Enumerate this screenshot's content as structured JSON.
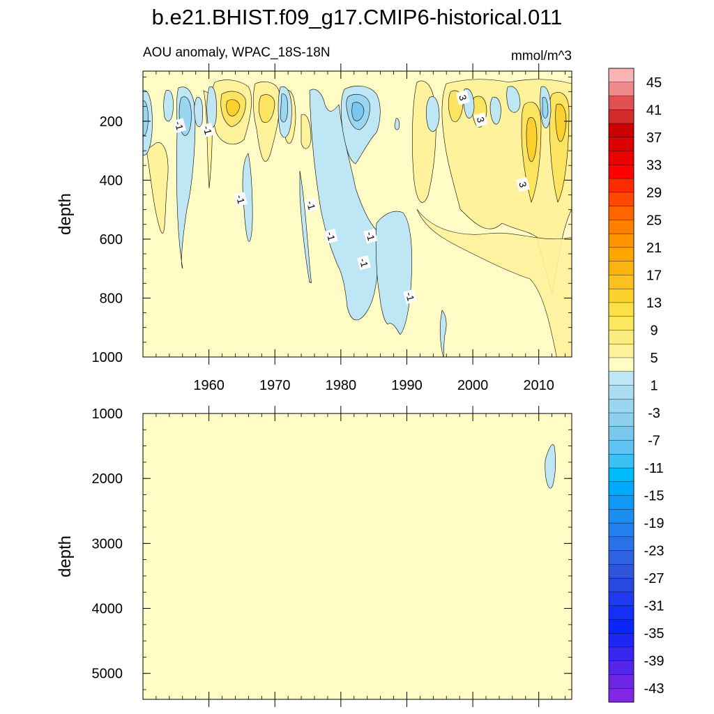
{
  "title": "b.e21.BHIST.f09_g17.CMIP6-historical.011",
  "colors": {
    "background": "#ffffff",
    "plot_fill": "#fffcc5",
    "neg_1": "#bee6f5",
    "neg_2": "#9bd6f0",
    "neg_3": "#7ac8ee",
    "pos_1": "#fff29d",
    "pos_2": "#fde460",
    "pos_3": "#fbcf2e",
    "contour": "#000000"
  },
  "chart_data": [
    {
      "type": "contour",
      "panel": "top",
      "subtitle_left": "AOU anomaly, WPAC_18S-18N",
      "subtitle_right": "mmol/m^3",
      "ylabel": "depth",
      "ylim": [
        1000,
        30
      ],
      "yticks": [
        200,
        400,
        600,
        800,
        1000
      ],
      "xlim": [
        1950,
        2015
      ],
      "xticks": [
        1960,
        1970,
        1980,
        1990,
        2000,
        2010
      ],
      "contour_labels": [
        {
          "text": "-1",
          "x": 1955.5,
          "y": 215
        },
        {
          "text": "-1",
          "x": 1959.8,
          "y": 230
        },
        {
          "text": "-1",
          "x": 1964.8,
          "y": 465
        },
        {
          "text": "-1",
          "x": 1975.5,
          "y": 485
        },
        {
          "text": "-1",
          "x": 1978.5,
          "y": 590
        },
        {
          "text": "-1",
          "x": 1984.5,
          "y": 590
        },
        {
          "text": "-1",
          "x": 1983.5,
          "y": 680
        },
        {
          "text": "-1",
          "x": 1990.5,
          "y": 795
        },
        {
          "text": "3",
          "x": 1998.5,
          "y": 120
        },
        {
          "text": "3",
          "x": 2001.2,
          "y": 195
        },
        {
          "text": "3",
          "x": 2007.6,
          "y": 415
        }
      ]
    },
    {
      "type": "contour",
      "panel": "bottom",
      "ylabel": "depth",
      "ylim": [
        5400,
        1000
      ],
      "yticks": [
        1000,
        2000,
        3000,
        4000,
        5000
      ],
      "xlim": [
        1950,
        2015
      ],
      "xticks": [
        1960,
        1970,
        1980,
        1990,
        2000,
        2010
      ]
    }
  ],
  "colorbar": {
    "labels": [
      "45",
      "41",
      "37",
      "33",
      "29",
      "25",
      "21",
      "17",
      "13",
      "9",
      "5",
      "1",
      "-3",
      "-7",
      "-11",
      "-15",
      "-19",
      "-23",
      "-27",
      "-31",
      "-35",
      "-39",
      "-43"
    ],
    "colors": [
      "#fbb4b4",
      "#f08a8a",
      "#e05050",
      "#d42a2a",
      "#cc0000",
      "#dd0000",
      "#ee0000",
      "#ff0000",
      "#ff2a00",
      "#ff4800",
      "#ff6600",
      "#ff7f00",
      "#ff9400",
      "#ffa500",
      "#fbb30e",
      "#fbc21f",
      "#fbd22e",
      "#fde048",
      "#fde660",
      "#fdec80",
      "#fff29d",
      "#fffcc5",
      "#bee6f5",
      "#acdef2",
      "#9bd6f0",
      "#8ccfef",
      "#7ac8ee",
      "#60c4f2",
      "#3ac0f5",
      "#00bbfc",
      "#00aafc",
      "#1299f7",
      "#1b8ef0",
      "#2480ec",
      "#2a72e8",
      "#2f62e2",
      "#2f55dd",
      "#2848e0",
      "#1f3af0",
      "#1430f8",
      "#0a26ff",
      "#1e26f5",
      "#3826ee",
      "#5526ea",
      "#6e26e6",
      "#8226e6"
    ]
  }
}
